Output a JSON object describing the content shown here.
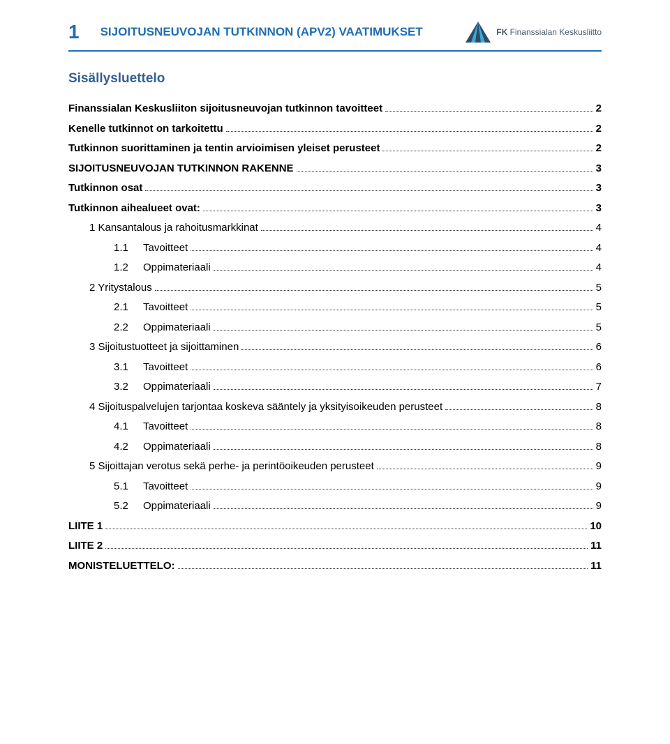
{
  "header": {
    "page_number": "1",
    "document_title": "SIJOITUSNEUVOJAN TUTKINNON (APV2) VAATIMUKSET",
    "org_prefix": "FK",
    "org_name": "Finanssialan Keskusliitto"
  },
  "logo_colors": {
    "dark": "#2e4a63",
    "light": "#3aa7d9"
  },
  "toc_heading": "Sisällysluettelo",
  "colors": {
    "heading_blue": "#365f91",
    "title_blue": "#1f6db5",
    "text_black": "#000000",
    "rule": "#1f6db5",
    "dots": "#333333",
    "bg": "#ffffff"
  },
  "toc": [
    {
      "level": 1,
      "label": "Finanssialan Keskusliiton sijoitusneuvojan tutkinnon tavoitteet",
      "page": "2"
    },
    {
      "level": 1,
      "label": "Kenelle tutkinnot on tarkoitettu",
      "page": "2"
    },
    {
      "level": 1,
      "label": "Tutkinnon suorittaminen ja tentin arvioimisen yleiset perusteet",
      "page": "2"
    },
    {
      "level": 1,
      "label": "SIJOITUSNEUVOJAN TUTKINNON RAKENNE",
      "page": "3"
    },
    {
      "level": 1,
      "label": "Tutkinnon osat",
      "page": "3"
    },
    {
      "level": 1,
      "label": "Tutkinnon aihealueet ovat:",
      "page": "3"
    },
    {
      "level": 2,
      "label": "1  Kansantalous ja rahoitusmarkkinat",
      "page": "4"
    },
    {
      "level": 3,
      "num": "1.1",
      "label": "Tavoitteet",
      "page": "4"
    },
    {
      "level": 3,
      "num": "1.2",
      "label": "Oppimateriaali",
      "page": "4"
    },
    {
      "level": 2,
      "label": "2  Yritystalous",
      "page": "5"
    },
    {
      "level": 3,
      "num": "2.1",
      "label": "Tavoitteet",
      "page": "5"
    },
    {
      "level": 3,
      "num": "2.2",
      "label": "Oppimateriaali",
      "page": "5"
    },
    {
      "level": 2,
      "label": "3  Sijoitustuotteet ja sijoittaminen",
      "page": "6"
    },
    {
      "level": 3,
      "num": "3.1",
      "label": "Tavoitteet",
      "page": "6"
    },
    {
      "level": 3,
      "num": "3.2",
      "label": "Oppimateriaali",
      "page": "7"
    },
    {
      "level": 2,
      "label": "4  Sijoituspalvelujen tarjontaa koskeva sääntely ja yksityisoikeuden perusteet",
      "page": "8"
    },
    {
      "level": 3,
      "num": "4.1",
      "label": "Tavoitteet",
      "page": "8"
    },
    {
      "level": 3,
      "num": "4.2",
      "label": "Oppimateriaali",
      "page": "8"
    },
    {
      "level": 2,
      "label": "5  Sijoittajan verotus sekä perhe- ja perintöoikeuden perusteet",
      "page": "9"
    },
    {
      "level": 3,
      "num": "5.1",
      "label": "Tavoitteet",
      "page": "9"
    },
    {
      "level": 3,
      "num": "5.2",
      "label": "Oppimateriaali",
      "page": "9"
    },
    {
      "level": 1,
      "label": "LIITE 1",
      "page": "10"
    },
    {
      "level": 1,
      "label": "LIITE 2",
      "page": "11"
    },
    {
      "level": 1,
      "label": "MONISTELUETTELO:",
      "page": "11"
    }
  ]
}
